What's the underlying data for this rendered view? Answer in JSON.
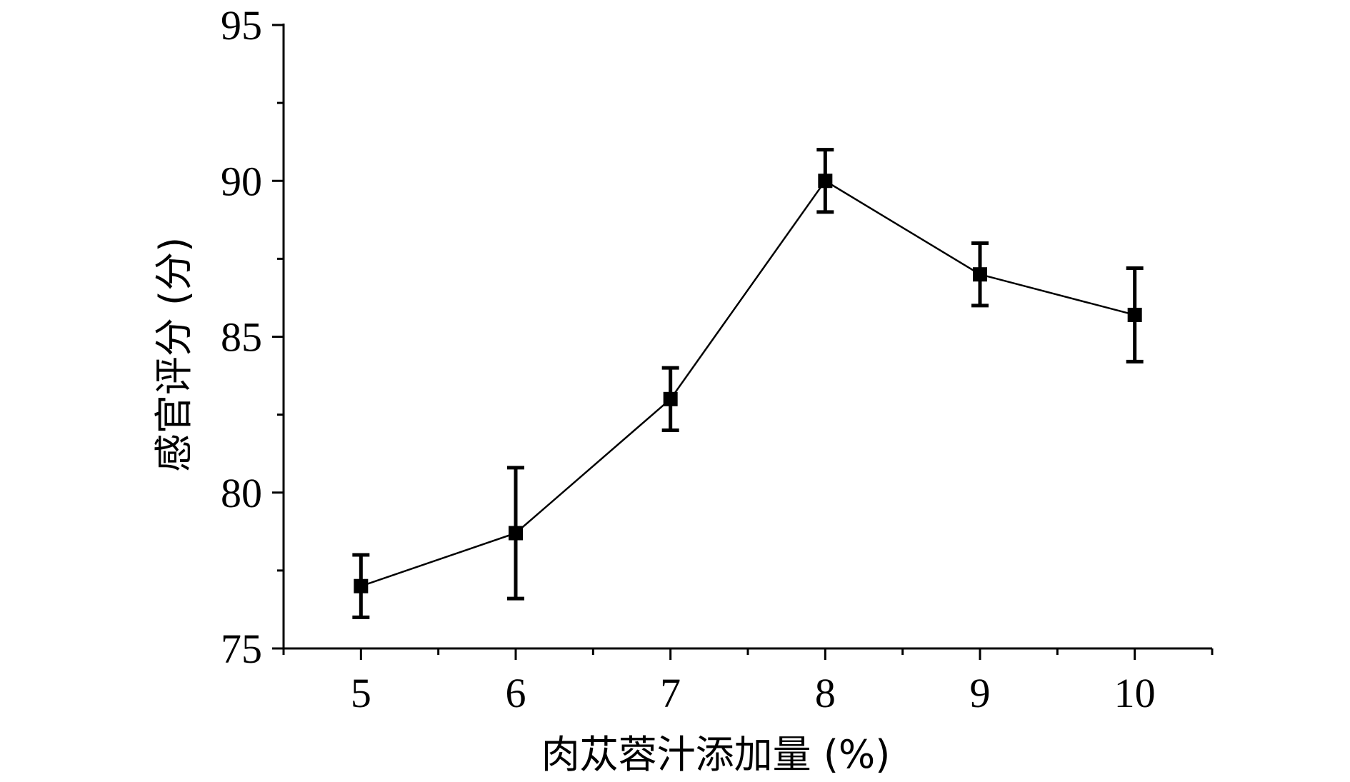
{
  "chart_data": {
    "type": "line",
    "title": "",
    "xlabel": "肉苁蓉汁添加量 (%)",
    "ylabel": "感官评分 (分)",
    "x": [
      5,
      6,
      7,
      8,
      9,
      10
    ],
    "xlim": [
      4.5,
      10.5
    ],
    "ylim": [
      75,
      95
    ],
    "xticks": [
      "5",
      "6",
      "7",
      "8",
      "9",
      "10"
    ],
    "yticks": [
      "75",
      "80",
      "85",
      "90",
      "95"
    ],
    "series": [
      {
        "values": [
          77.0,
          78.7,
          83.0,
          90.0,
          87.0,
          85.7
        ],
        "error": [
          1.0,
          2.1,
          1.0,
          1.0,
          1.0,
          1.5
        ],
        "color": "#000000",
        "marker": "square"
      }
    ],
    "grid": false,
    "legend": "none"
  }
}
